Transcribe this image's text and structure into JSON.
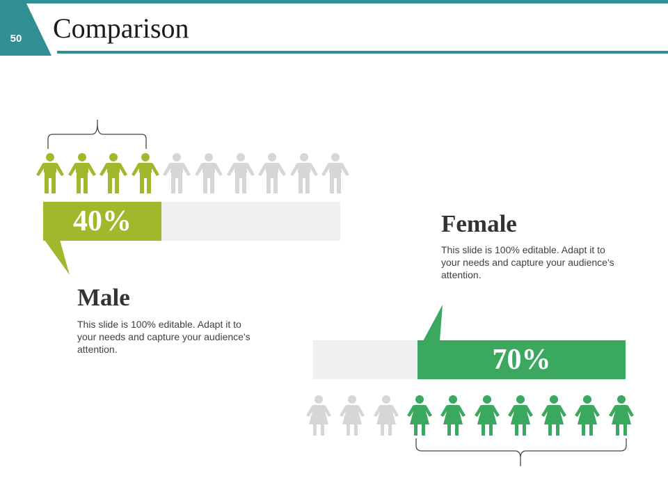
{
  "header": {
    "slide_number": "50",
    "title": "Comparison",
    "accent_color": "#2f8f93"
  },
  "male": {
    "heading": "Male",
    "percent_label": "40%",
    "fraction": 0.4,
    "description": "This slide is 100% editable. Adapt it to your needs and capture your audience's attention.",
    "color": "#a0b92c",
    "icon": "male-person-icon",
    "total_icons": 10,
    "highlighted_icons": 4
  },
  "female": {
    "heading": "Female",
    "percent_label": "70%",
    "fraction": 0.7,
    "description": "This slide is 100% editable. Adapt it to your needs and capture your audience's attention.",
    "color": "#3aa85f",
    "icon": "female-person-icon",
    "total_icons": 10,
    "highlighted_icons": 7
  },
  "inactive_color": "#d6d6d6"
}
